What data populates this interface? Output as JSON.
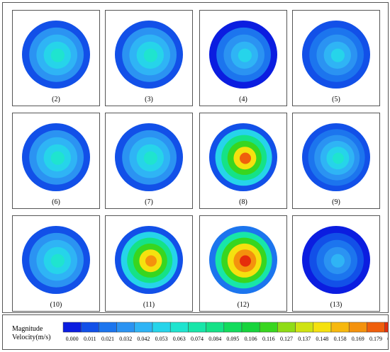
{
  "legend": {
    "title_line1": "Magnitude",
    "title_line2": "Velocity(m/s)",
    "ticks": [
      "0.000",
      "0.011",
      "0.021",
      "0.032",
      "0.042",
      "0.053",
      "0.063",
      "0.074",
      "0.084",
      "0.095",
      "0.106",
      "0.116",
      "0.127",
      "0.137",
      "0.148",
      "0.158",
      "0.169",
      "0.179",
      "0.190"
    ],
    "colors": [
      "#0b1de0",
      "#1250e8",
      "#1c75ee",
      "#2b93f2",
      "#2fb4f5",
      "#26d4ea",
      "#1fe4cf",
      "#18e6a9",
      "#15e287",
      "#12dc5c",
      "#16d43c",
      "#38d61f",
      "#8fdc16",
      "#cfe312",
      "#f5e10f",
      "#f7b80e",
      "#f4920d",
      "#ef5f0c",
      "#e52d0b"
    ]
  },
  "panels": [
    {
      "label": "(2)",
      "levels": [
        1,
        3,
        4,
        5,
        6
      ]
    },
    {
      "label": "(3)",
      "levels": [
        1,
        3,
        4,
        5,
        6
      ]
    },
    {
      "label": "(4)",
      "levels": [
        0,
        2,
        3,
        4,
        5
      ]
    },
    {
      "label": "(5)",
      "levels": [
        1,
        2,
        3,
        4,
        5
      ]
    },
    {
      "label": "(6)",
      "levels": [
        1,
        3,
        4,
        5,
        6
      ]
    },
    {
      "label": "(7)",
      "levels": [
        1,
        3,
        4,
        5,
        6
      ]
    },
    {
      "label": "(8)",
      "levels": [
        1,
        5,
        8,
        11,
        14,
        17
      ]
    },
    {
      "label": "(9)",
      "levels": [
        1,
        2,
        3,
        4,
        5,
        6
      ]
    },
    {
      "label": "(10)",
      "levels": [
        1,
        3,
        4,
        5,
        6
      ]
    },
    {
      "label": "(11)",
      "levels": [
        1,
        5,
        8,
        11,
        14,
        16
      ]
    },
    {
      "label": "(12)",
      "levels": [
        2,
        7,
        11,
        14,
        16,
        18
      ]
    },
    {
      "label": "(13)",
      "levels": [
        0,
        1,
        2,
        3,
        4
      ]
    }
  ]
}
